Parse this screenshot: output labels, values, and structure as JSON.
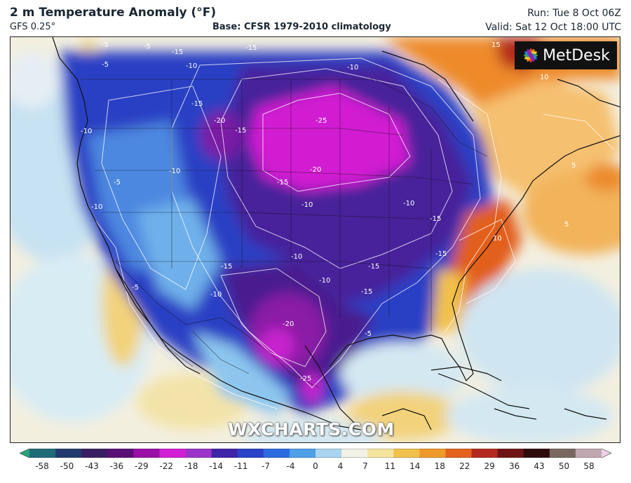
{
  "header": {
    "title": "2 m Temperature Anomaly (°F)",
    "model": "GFS 0.25°",
    "base": "Base: CFSR 1979-2010 climatology",
    "run": "Run: Tue 8 Oct 06Z",
    "valid": "Valid: Sat 12 Oct 18:00 UTC"
  },
  "logo": {
    "text": "MetDesk"
  },
  "watermark": {
    "text": "WXCHARTS.COM"
  },
  "contour_labels": [
    "-5",
    "-15",
    "-10",
    "-5",
    "-15",
    "-10",
    "-5",
    "-15",
    "-10",
    "-10",
    "-5",
    "-20",
    "-15",
    "-25",
    "-20",
    "-15",
    "-10",
    "-15",
    "-10",
    "-10",
    "-10",
    "-15",
    "-20",
    "-15",
    "-25",
    "-5",
    "-15",
    "-15",
    "10",
    "5",
    "5",
    "15",
    "10",
    "-5",
    "-10",
    "-10"
  ],
  "colorbar": {
    "ticks": [
      "-58",
      "-50",
      "-43",
      "-36",
      "-29",
      "-22",
      "-18",
      "-14",
      "-11",
      "-7",
      "-4",
      "0",
      "4",
      "7",
      "11",
      "14",
      "18",
      "22",
      "29",
      "36",
      "43",
      "50",
      "58"
    ],
    "colors": [
      "#27a37a",
      "#1f6b78",
      "#223a6e",
      "#3a1e63",
      "#5a1075",
      "#9a10a6",
      "#d21fd6",
      "#9b35c9",
      "#3f24a8",
      "#2a43c9",
      "#2d6be0",
      "#4ea0e8",
      "#a8d4f0",
      "#f2f1e6",
      "#f5e3a0",
      "#f2c14a",
      "#ee9a2a",
      "#e5611e",
      "#b52a1e",
      "#6e1414",
      "#2e0c0c",
      "#7a6860",
      "#c0a8b0",
      "#f0d0e8"
    ]
  }
}
